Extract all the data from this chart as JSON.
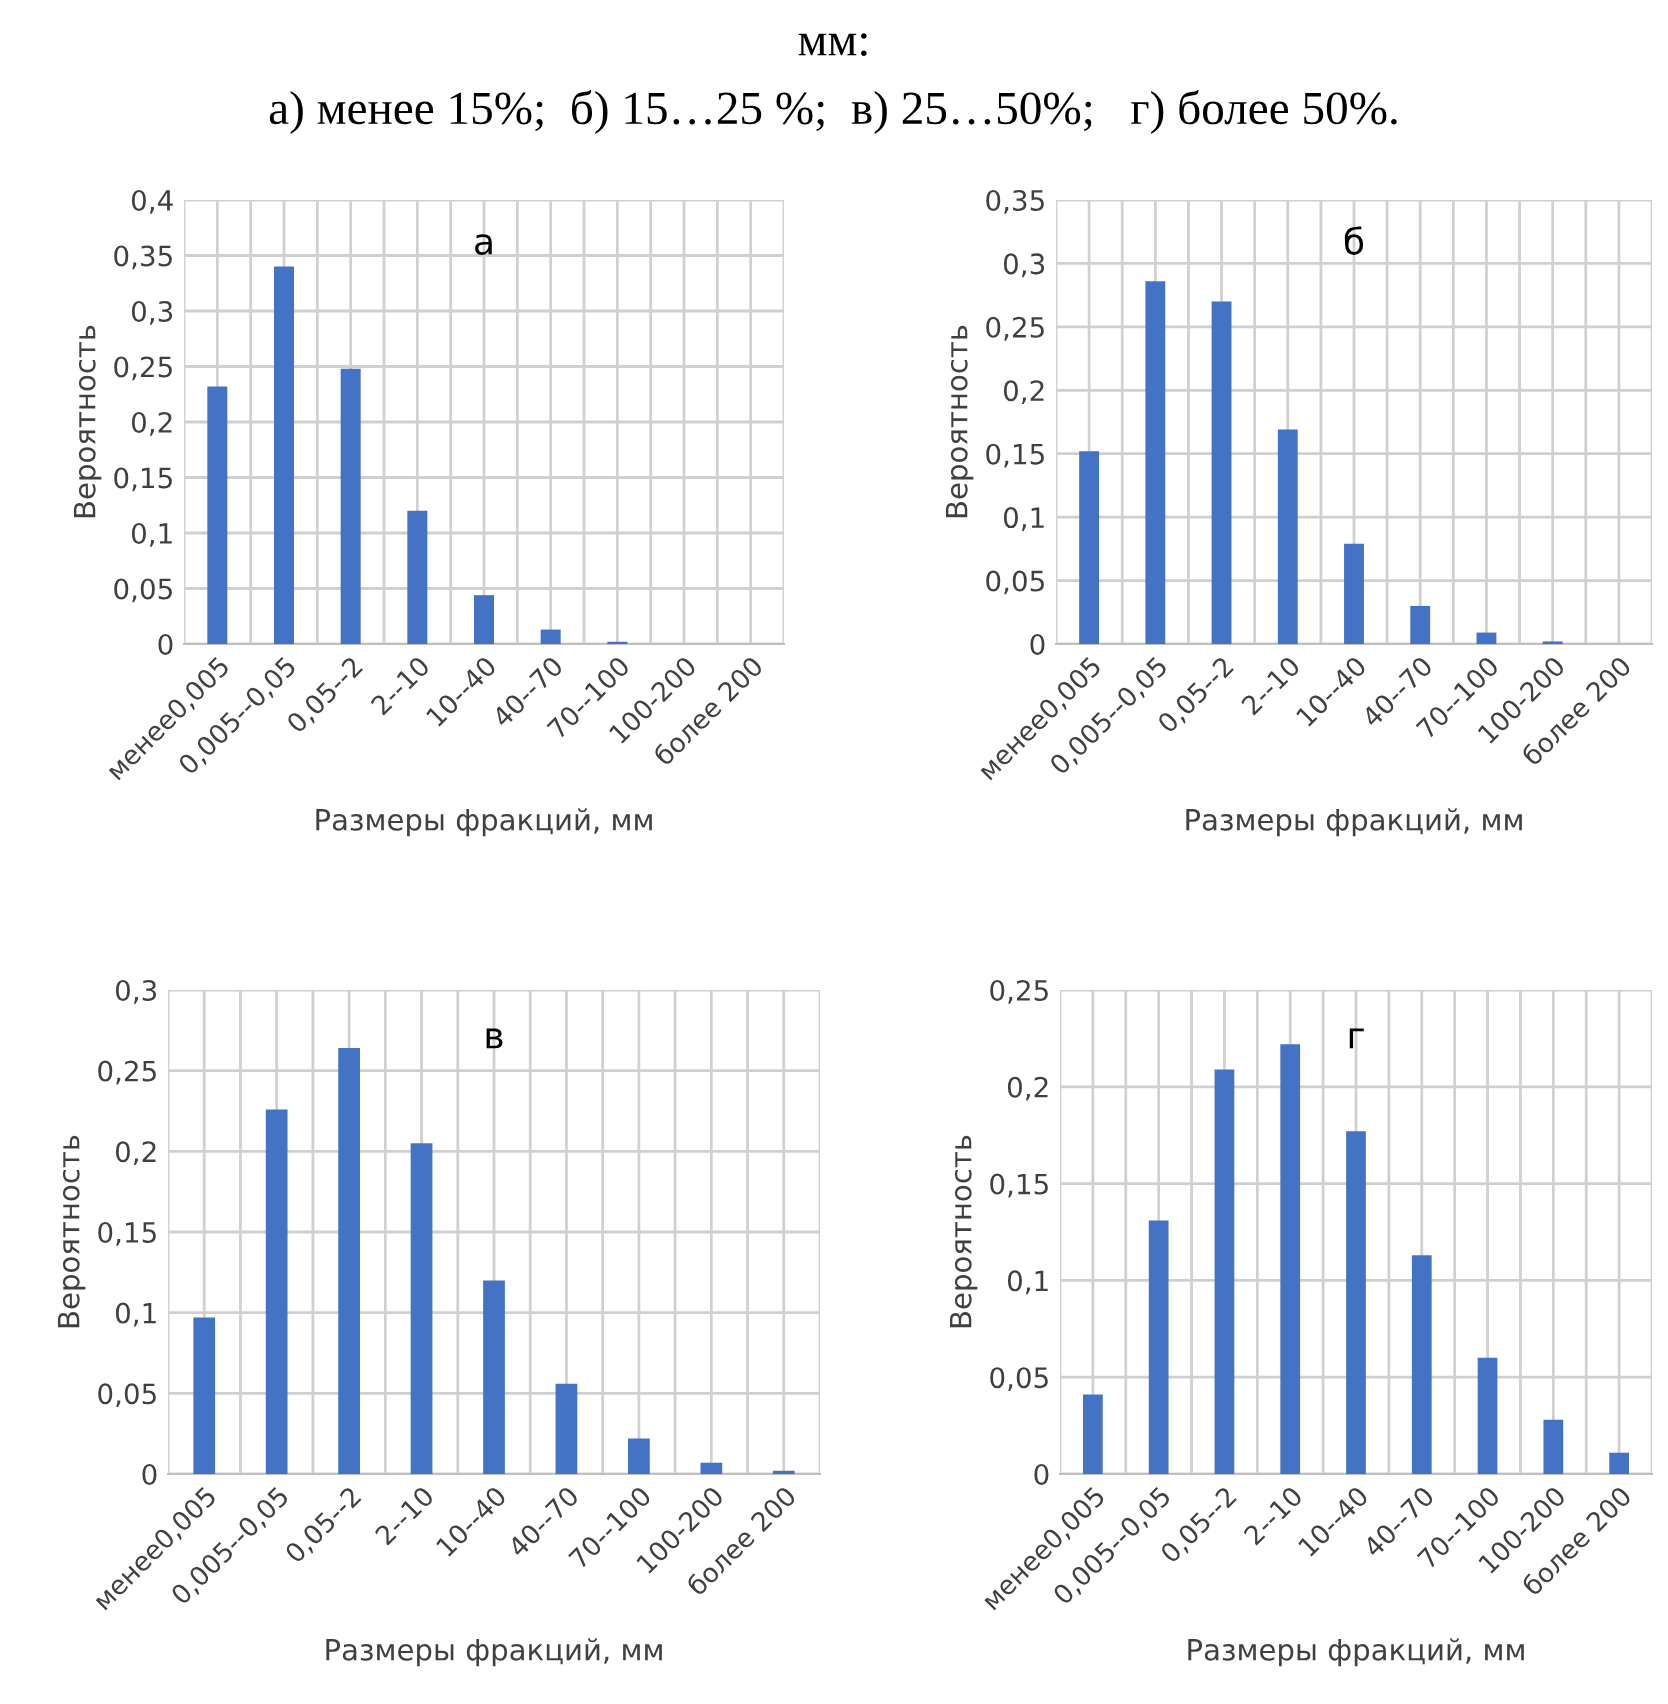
{
  "chart_data": [
    {
      "type": "bar",
      "title": "а",
      "xlabel": "Размеры фракций, мм",
      "ylabel": "Вероятность",
      "annotations": [
        "мм:",
        "а) менее 15%;  б) 15…25 %;  в) 25…50%;   г) более 50%."
      ],
      "categories": [
        "менее0,005",
        "0,005--0,05",
        "0,05--2",
        "2--10",
        "10--40",
        "40--70",
        "70--100",
        "100-200",
        "более 200"
      ],
      "values": [
        0.232,
        0.34,
        0.248,
        0.12,
        0.044,
        0.013,
        0.002,
        0,
        0
      ],
      "color": "#4472c4",
      "ylim": [
        0,
        0.4
      ],
      "yticks": [
        0,
        {
          "value": 0.05,
          "label": "0,05"
        },
        {
          "value": 0.1,
          "label": "0,1"
        },
        {
          "value": 0.15,
          "label": "0,15"
        },
        {
          "value": 0.2,
          "label": "0,2"
        },
        {
          "value": 0.25,
          "label": "0,25"
        },
        {
          "value": 0.3,
          "label": "0,3"
        },
        {
          "value": 0.35,
          "label": "0,35"
        },
        {
          "value": 0.4,
          "label": "0,4"
        }
      ],
      "grid": true
    },
    {
      "type": "bar",
      "title": "б",
      "xlabel": "Размеры фракций, мм",
      "ylabel": "Вероятность",
      "categories": [
        "менее0,005",
        "0,005--0,05",
        "0,05--2",
        "2--10",
        "10--40",
        "40--70",
        "70--100",
        "100-200",
        "более 200"
      ],
      "values": [
        0.152,
        0.286,
        0.27,
        0.169,
        0.079,
        0.03,
        0.009,
        0.002,
        0
      ],
      "color": "#4472c4",
      "ylim": [
        0,
        0.35
      ],
      "yticks": [
        0,
        {
          "value": 0.05,
          "label": "0,05"
        },
        {
          "value": 0.1,
          "label": "0,1"
        },
        {
          "value": 0.15,
          "label": "0,15"
        },
        {
          "value": 0.2,
          "label": "0,2"
        },
        {
          "value": 0.25,
          "label": "0,25"
        },
        {
          "value": 0.3,
          "label": "0,3"
        },
        {
          "value": 0.35,
          "label": "0,35"
        }
      ],
      "grid": true
    },
    {
      "type": "bar",
      "title": "в",
      "xlabel": "Размеры фракций, мм",
      "ylabel": "Вероятность",
      "categories": [
        "менее0,005",
        "0,005--0,05",
        "0,05--2",
        "2--10",
        "10--40",
        "40--70",
        "70--100",
        "100-200",
        "более 200"
      ],
      "values": [
        0.097,
        0.226,
        0.264,
        0.205,
        0.12,
        0.056,
        0.022,
        0.007,
        0.002
      ],
      "color": "#4472c4",
      "ylim": [
        0,
        0.3
      ],
      "yticks": [
        0,
        {
          "value": 0.05,
          "label": "0,05"
        },
        {
          "value": 0.1,
          "label": "0,1"
        },
        {
          "value": 0.15,
          "label": "0,15"
        },
        {
          "value": 0.2,
          "label": "0,2"
        },
        {
          "value": 0.25,
          "label": "0,25"
        },
        {
          "value": 0.3,
          "label": "0,3"
        }
      ],
      "grid": true
    },
    {
      "type": "bar",
      "title": "г",
      "xlabel": "Размеры фракций, мм",
      "ylabel": "Вероятность",
      "categories": [
        "менее0,005",
        "0,005--0,05",
        "0,05--2",
        "2--10",
        "10--40",
        "40--70",
        "70--100",
        "100-200",
        "более 200"
      ],
      "values": [
        0.041,
        0.131,
        0.209,
        0.222,
        0.177,
        0.113,
        0.06,
        0.028,
        0.011
      ],
      "color": "#4472c4",
      "ylim": [
        0,
        0.25
      ],
      "yticks": [
        0,
        {
          "value": 0.05,
          "label": "0,05"
        },
        {
          "value": 0.1,
          "label": "0,1"
        },
        {
          "value": 0.15,
          "label": "0,15"
        },
        {
          "value": 0.2,
          "label": "0,2"
        },
        {
          "value": 0.25,
          "label": "0,25"
        }
      ],
      "grid": true
    }
  ]
}
